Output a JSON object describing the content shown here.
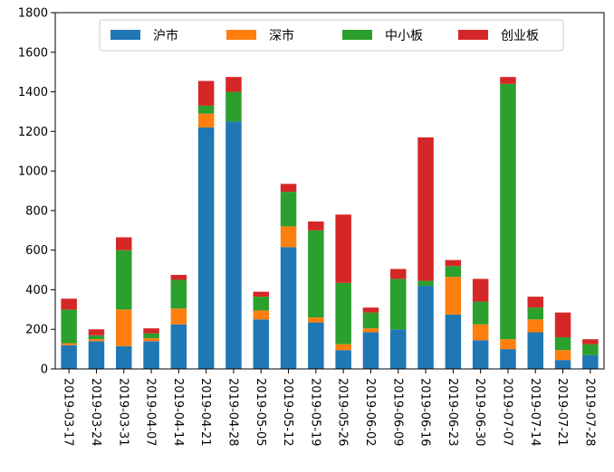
{
  "chart_data": {
    "type": "bar",
    "stacked": true,
    "categories": [
      "2019-03-17",
      "2019-03-24",
      "2019-03-31",
      "2019-04-07",
      "2019-04-14",
      "2019-04-21",
      "2019-04-28",
      "2019-05-05",
      "2019-05-12",
      "2019-05-19",
      "2019-05-26",
      "2019-06-02",
      "2019-06-09",
      "2019-06-16",
      "2019-06-23",
      "2019-06-30",
      "2019-07-07",
      "2019-07-14",
      "2019-07-21",
      "2019-07-28"
    ],
    "series": [
      {
        "name": "沪市",
        "color": "#1f77b4",
        "values": [
          120,
          140,
          115,
          140,
          225,
          1220,
          1250,
          250,
          615,
          235,
          95,
          185,
          200,
          420,
          275,
          145,
          100,
          185,
          45,
          70
        ]
      },
      {
        "name": "深市",
        "color": "#ff7f0e",
        "values": [
          10,
          10,
          185,
          15,
          80,
          70,
          0,
          45,
          105,
          25,
          30,
          20,
          0,
          0,
          190,
          80,
          50,
          65,
          50,
          0
        ]
      },
      {
        "name": "中小板",
        "color": "#2ca02c",
        "values": [
          170,
          20,
          300,
          25,
          145,
          40,
          150,
          70,
          175,
          440,
          310,
          80,
          255,
          25,
          55,
          115,
          1290,
          60,
          65,
          55
        ]
      },
      {
        "name": "创业板",
        "color": "#d62728",
        "values": [
          55,
          30,
          65,
          25,
          25,
          125,
          75,
          25,
          40,
          45,
          345,
          25,
          50,
          725,
          30,
          115,
          35,
          55,
          125,
          25
        ]
      }
    ],
    "ylim": [
      0,
      1800
    ],
    "yticks": [
      0,
      200,
      400,
      600,
      800,
      1000,
      1200,
      1400,
      1600,
      1800
    ],
    "legend": "top-center",
    "grid": false
  }
}
